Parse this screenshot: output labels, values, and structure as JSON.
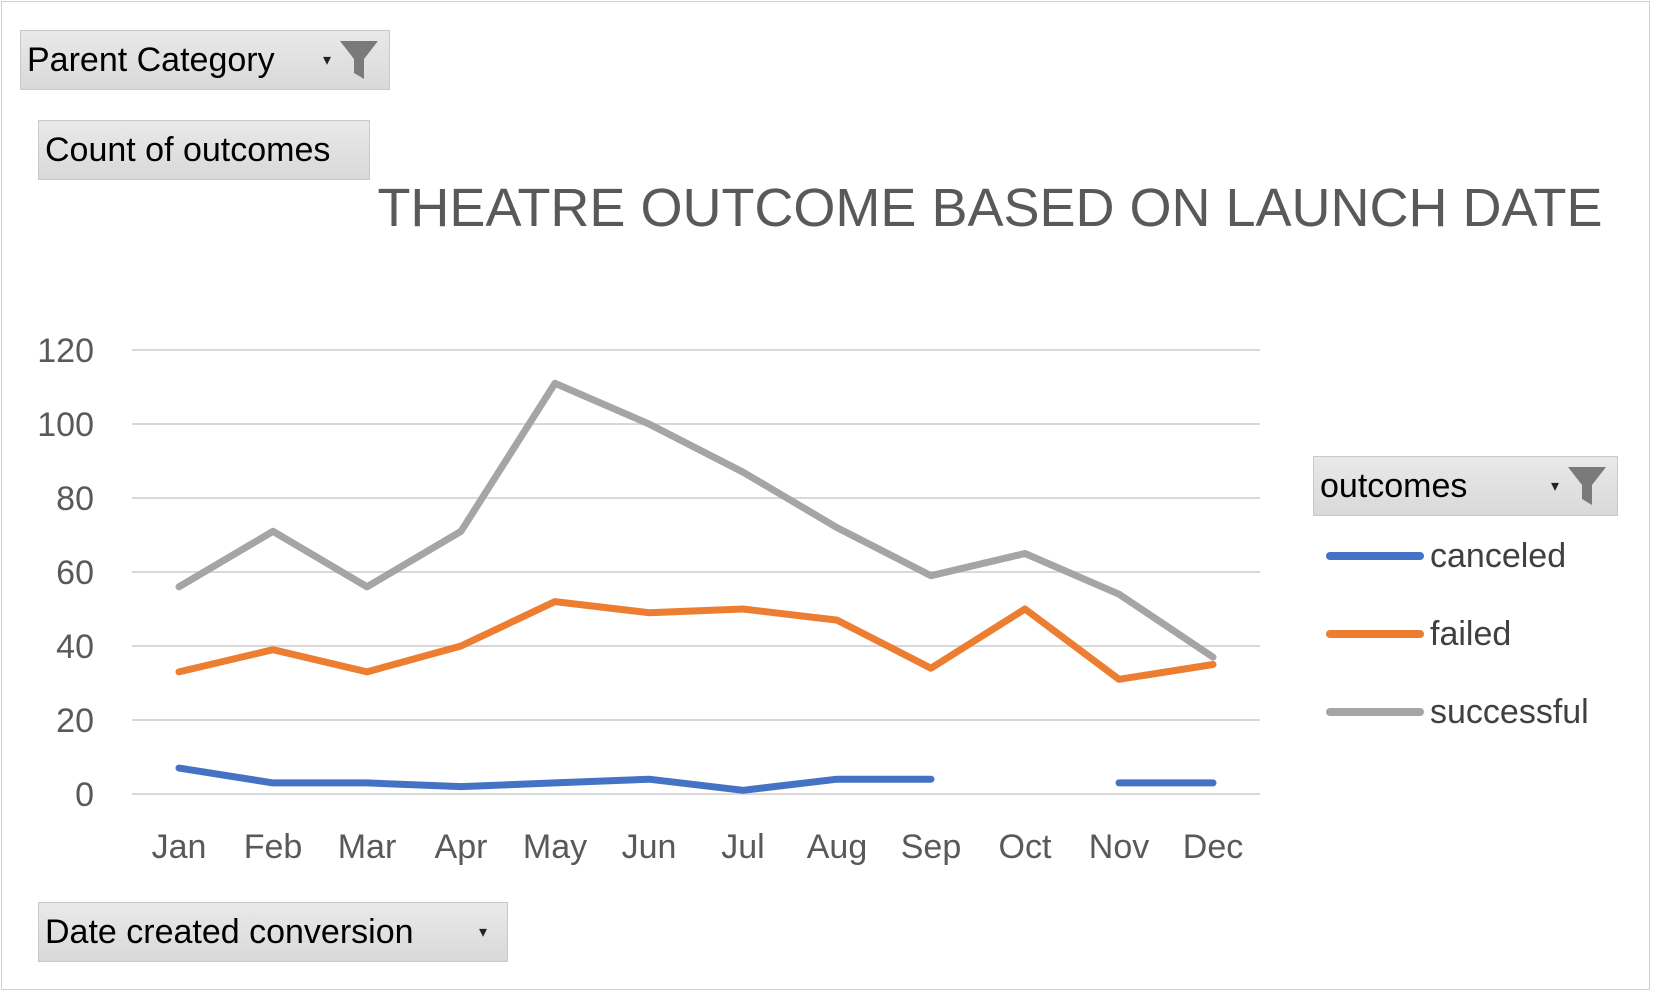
{
  "pivot_fields": {
    "filter_label": "Parent Category",
    "values_label": "Count of outcomes",
    "axis_label": "Date created conversion",
    "legend_label": "outcomes"
  },
  "icons": {
    "filter": "funnel-icon",
    "dropdown": "chevron-down-icon"
  },
  "chart_data": {
    "type": "line",
    "title": "THEATRE OUTCOME BASED ON LAUNCH DATE",
    "categories": [
      "Jan",
      "Feb",
      "Mar",
      "Apr",
      "May",
      "Jun",
      "Jul",
      "Aug",
      "Sep",
      "Oct",
      "Nov",
      "Dec"
    ],
    "ylim": [
      0,
      120
    ],
    "yticks": [
      0,
      20,
      40,
      60,
      80,
      100,
      120
    ],
    "grid": true,
    "legend_position": "right",
    "series": [
      {
        "name": "canceled",
        "color": "#4472C4",
        "values": [
          7,
          3,
          3,
          2,
          3,
          4,
          1,
          4,
          4,
          null,
          3,
          3
        ]
      },
      {
        "name": "failed",
        "color": "#ED7D31",
        "values": [
          33,
          39,
          33,
          40,
          52,
          49,
          50,
          47,
          34,
          50,
          31,
          35
        ]
      },
      {
        "name": "successful",
        "color": "#A5A5A5",
        "values": [
          56,
          71,
          56,
          71,
          111,
          100,
          87,
          72,
          59,
          65,
          54,
          37
        ]
      }
    ]
  }
}
